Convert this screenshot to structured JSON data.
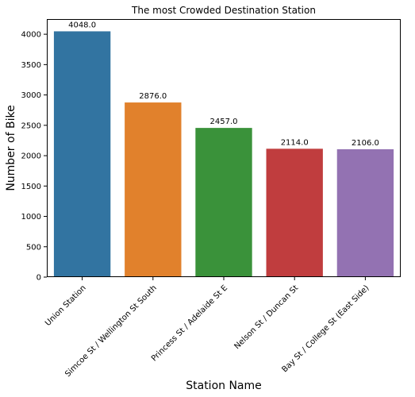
{
  "chart_data": {
    "type": "bar",
    "title": "The most Crowded Destination Station",
    "xlabel": "Station Name",
    "ylabel": "Number of Bike",
    "categories": [
      "Union Station",
      "Simcoe St / Wellington St South",
      "Princess St / Adelaide St E",
      "Nelson St / Duncan St",
      "Bay St / College St (East Side)"
    ],
    "values": [
      4048.0,
      2876.0,
      2457.0,
      2114.0,
      2106.0
    ],
    "data_labels": [
      "4048.0",
      "2876.0",
      "2457.0",
      "2114.0",
      "2106.0"
    ],
    "colors": [
      "#3274a1",
      "#e1812c",
      "#3a923a",
      "#c03d3e",
      "#9372b2"
    ],
    "ylim": [
      0,
      4250
    ],
    "yticks": [
      0,
      500,
      1000,
      1500,
      2000,
      2500,
      3000,
      3500,
      4000
    ],
    "grid": false,
    "legend": "none"
  }
}
